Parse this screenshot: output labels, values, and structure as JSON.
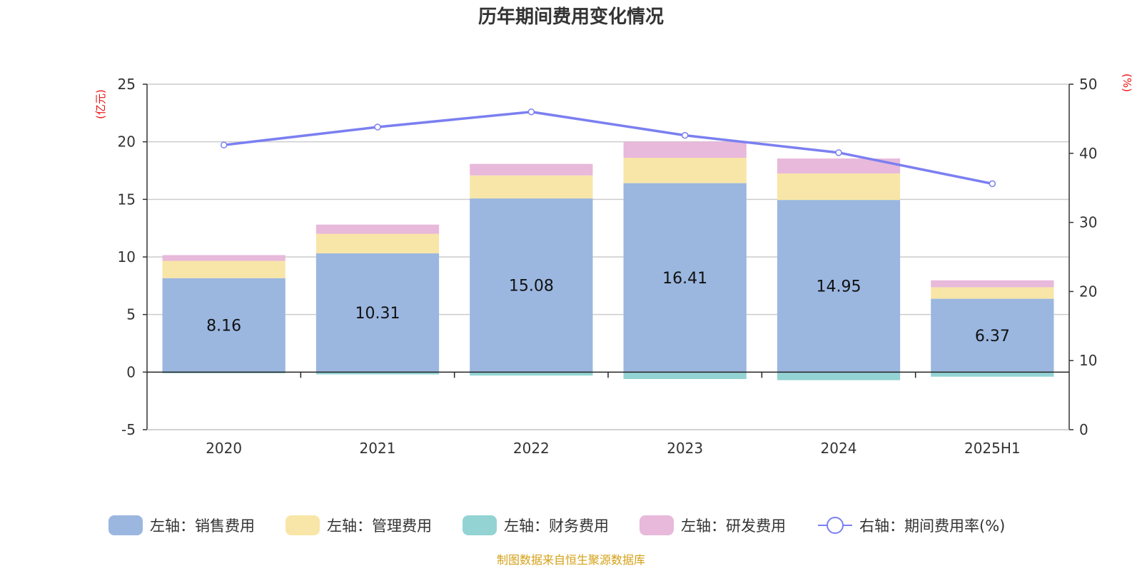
{
  "title": "历年期间费用变化情况",
  "source": "制图数据来自恒生聚源数据库",
  "colors": {
    "sales": "#9bb7e0",
    "admin": "#f8e6a8",
    "finance": "#93d3d3",
    "rd": "#e8b9db",
    "rate_line": "#7b7ff0",
    "unit_text": "#ee1111"
  },
  "chart_data": {
    "type": "bar",
    "stacked": true,
    "categories": [
      "2020",
      "2021",
      "2022",
      "2023",
      "2024",
      "2025H1"
    ],
    "left_axis": {
      "unit": "(亿元)",
      "ylim": [
        -5,
        25
      ],
      "ticks": [
        -5,
        0,
        5,
        10,
        15,
        20,
        25
      ],
      "tick_labels": [
        "-5",
        "0",
        "5",
        "10",
        "15",
        "20",
        "25"
      ]
    },
    "right_axis": {
      "unit": "(%)",
      "ylim": [
        0,
        50
      ],
      "ticks": [
        0,
        10,
        20,
        30,
        40,
        50
      ],
      "tick_labels": [
        "0",
        "10",
        "20",
        "30",
        "40",
        "50"
      ]
    },
    "grid": true,
    "legend_position": "bottom",
    "series": [
      {
        "key": "sales",
        "name": "左轴：销售费用",
        "axis": "left",
        "type": "bar",
        "values": [
          8.16,
          10.31,
          15.08,
          16.41,
          14.95,
          6.37
        ],
        "data_labels": [
          "8.16",
          "10.31",
          "15.08",
          "16.41",
          "14.95",
          "6.37"
        ]
      },
      {
        "key": "admin",
        "name": "左轴：管理费用",
        "axis": "left",
        "type": "bar",
        "values": [
          1.5,
          1.7,
          2.0,
          2.2,
          2.3,
          1.0
        ]
      },
      {
        "key": "finance",
        "name": "左轴：财务费用",
        "axis": "left",
        "type": "bar",
        "values": [
          -0.1,
          -0.2,
          -0.3,
          -0.6,
          -0.7,
          -0.4
        ]
      },
      {
        "key": "rd",
        "name": "左轴：研发费用",
        "axis": "left",
        "type": "bar",
        "values": [
          0.5,
          0.8,
          1.0,
          1.4,
          1.3,
          0.6
        ]
      },
      {
        "key": "rate",
        "name": "右轴：期间费用率(%)",
        "axis": "right",
        "type": "line",
        "values": [
          41.2,
          43.8,
          46.0,
          42.6,
          40.1,
          35.6
        ]
      }
    ]
  }
}
